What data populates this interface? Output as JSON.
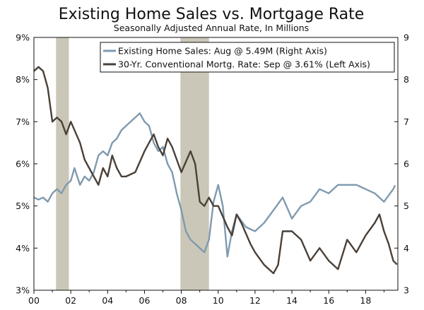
{
  "chart_data": {
    "type": "line",
    "title": "Existing Home Sales vs. Mortgage Rate",
    "subtitle": "Seasonally Adjusted Annual Rate, In Millions",
    "x_range": [
      2000,
      2019.75
    ],
    "x_ticks": [
      2000,
      2002,
      2004,
      2006,
      2008,
      2010,
      2012,
      2014,
      2016,
      2018
    ],
    "x_tick_labels": [
      "00",
      "02",
      "04",
      "06",
      "08",
      "10",
      "12",
      "14",
      "16",
      "18"
    ],
    "left_axis": {
      "range": [
        3,
        9
      ],
      "ticks": [
        3,
        4,
        5,
        6,
        7,
        8,
        9
      ],
      "tick_labels": [
        "3%",
        "4%",
        "5%",
        "6%",
        "7%",
        "8%",
        "9%"
      ]
    },
    "right_axis": {
      "range": [
        3,
        9
      ],
      "ticks": [
        3,
        4,
        5,
        6,
        7,
        8,
        9
      ],
      "tick_labels": [
        "3",
        "4",
        "5",
        "6",
        "7",
        "8",
        "9"
      ]
    },
    "recessions": [
      [
        2001.2,
        2001.9
      ],
      [
        2007.95,
        2009.5
      ]
    ],
    "series": [
      {
        "name": "Existing Home Sales: Aug @ 5.49M (Right Axis)",
        "axis": "right",
        "color": "#7f9aaf",
        "points": [
          [
            2000.0,
            5.2
          ],
          [
            2000.25,
            5.15
          ],
          [
            2000.5,
            5.2
          ],
          [
            2000.75,
            5.1
          ],
          [
            2001.0,
            5.3
          ],
          [
            2001.25,
            5.4
          ],
          [
            2001.5,
            5.3
          ],
          [
            2001.75,
            5.5
          ],
          [
            2002.0,
            5.6
          ],
          [
            2002.2,
            5.9
          ],
          [
            2002.5,
            5.5
          ],
          [
            2002.75,
            5.7
          ],
          [
            2003.0,
            5.6
          ],
          [
            2003.25,
            5.8
          ],
          [
            2003.5,
            6.2
          ],
          [
            2003.75,
            6.3
          ],
          [
            2004.0,
            6.2
          ],
          [
            2004.25,
            6.5
          ],
          [
            2004.5,
            6.6
          ],
          [
            2004.75,
            6.8
          ],
          [
            2005.0,
            6.9
          ],
          [
            2005.25,
            7.0
          ],
          [
            2005.5,
            7.1
          ],
          [
            2005.75,
            7.2
          ],
          [
            2006.0,
            7.0
          ],
          [
            2006.25,
            6.9
          ],
          [
            2006.5,
            6.5
          ],
          [
            2006.75,
            6.3
          ],
          [
            2007.0,
            6.4
          ],
          [
            2007.25,
            6.0
          ],
          [
            2007.5,
            5.8
          ],
          [
            2007.75,
            5.3
          ],
          [
            2008.0,
            4.9
          ],
          [
            2008.25,
            4.4
          ],
          [
            2008.5,
            4.2
          ],
          [
            2008.75,
            4.1
          ],
          [
            2009.0,
            4.0
          ],
          [
            2009.25,
            3.9
          ],
          [
            2009.5,
            4.2
          ],
          [
            2009.75,
            5.1
          ],
          [
            2010.0,
            5.5
          ],
          [
            2010.25,
            5.0
          ],
          [
            2010.5,
            3.8
          ],
          [
            2010.75,
            4.4
          ],
          [
            2011.0,
            4.8
          ],
          [
            2011.5,
            4.5
          ],
          [
            2012.0,
            4.4
          ],
          [
            2012.5,
            4.6
          ],
          [
            2013.0,
            4.9
          ],
          [
            2013.5,
            5.2
          ],
          [
            2014.0,
            4.7
          ],
          [
            2014.5,
            5.0
          ],
          [
            2015.0,
            5.1
          ],
          [
            2015.5,
            5.4
          ],
          [
            2016.0,
            5.3
          ],
          [
            2016.5,
            5.5
          ],
          [
            2017.0,
            5.5
          ],
          [
            2017.5,
            5.5
          ],
          [
            2018.0,
            5.4
          ],
          [
            2018.5,
            5.3
          ],
          [
            2019.0,
            5.1
          ],
          [
            2019.5,
            5.4
          ],
          [
            2019.6,
            5.49
          ]
        ]
      },
      {
        "name": "30-Yr. Conventional Mortg. Rate: Sep @ 3.61% (Left Axis)",
        "axis": "left",
        "color": "#4a4038",
        "points": [
          [
            2000.0,
            8.2
          ],
          [
            2000.25,
            8.3
          ],
          [
            2000.5,
            8.2
          ],
          [
            2000.75,
            7.8
          ],
          [
            2001.0,
            7.0
          ],
          [
            2001.25,
            7.1
          ],
          [
            2001.5,
            7.0
          ],
          [
            2001.75,
            6.7
          ],
          [
            2002.0,
            7.0
          ],
          [
            2002.5,
            6.5
          ],
          [
            2002.75,
            6.1
          ],
          [
            2003.0,
            5.9
          ],
          [
            2003.5,
            5.5
          ],
          [
            2003.75,
            5.9
          ],
          [
            2004.0,
            5.7
          ],
          [
            2004.25,
            6.2
          ],
          [
            2004.5,
            5.9
          ],
          [
            2004.75,
            5.7
          ],
          [
            2005.0,
            5.7
          ],
          [
            2005.5,
            5.8
          ],
          [
            2006.0,
            6.3
          ],
          [
            2006.5,
            6.7
          ],
          [
            2006.75,
            6.4
          ],
          [
            2007.0,
            6.2
          ],
          [
            2007.25,
            6.6
          ],
          [
            2007.5,
            6.4
          ],
          [
            2007.75,
            6.1
          ],
          [
            2008.0,
            5.8
          ],
          [
            2008.5,
            6.3
          ],
          [
            2008.75,
            6.0
          ],
          [
            2009.0,
            5.1
          ],
          [
            2009.25,
            5.0
          ],
          [
            2009.5,
            5.2
          ],
          [
            2009.75,
            5.0
          ],
          [
            2010.0,
            5.0
          ],
          [
            2010.5,
            4.5
          ],
          [
            2010.75,
            4.3
          ],
          [
            2011.0,
            4.8
          ],
          [
            2011.25,
            4.6
          ],
          [
            2011.75,
            4.1
          ],
          [
            2012.0,
            3.9
          ],
          [
            2012.5,
            3.6
          ],
          [
            2013.0,
            3.4
          ],
          [
            2013.25,
            3.6
          ],
          [
            2013.5,
            4.4
          ],
          [
            2014.0,
            4.4
          ],
          [
            2014.5,
            4.2
          ],
          [
            2015.0,
            3.7
          ],
          [
            2015.5,
            4.0
          ],
          [
            2016.0,
            3.7
          ],
          [
            2016.5,
            3.5
          ],
          [
            2017.0,
            4.2
          ],
          [
            2017.5,
            3.9
          ],
          [
            2018.0,
            4.3
          ],
          [
            2018.5,
            4.6
          ],
          [
            2018.75,
            4.8
          ],
          [
            2019.0,
            4.4
          ],
          [
            2019.25,
            4.1
          ],
          [
            2019.5,
            3.7
          ],
          [
            2019.7,
            3.61
          ]
        ]
      }
    ],
    "legend_position": "top-right",
    "colors": {
      "recession": "#cbc7b8",
      "axis": "#111111"
    }
  }
}
